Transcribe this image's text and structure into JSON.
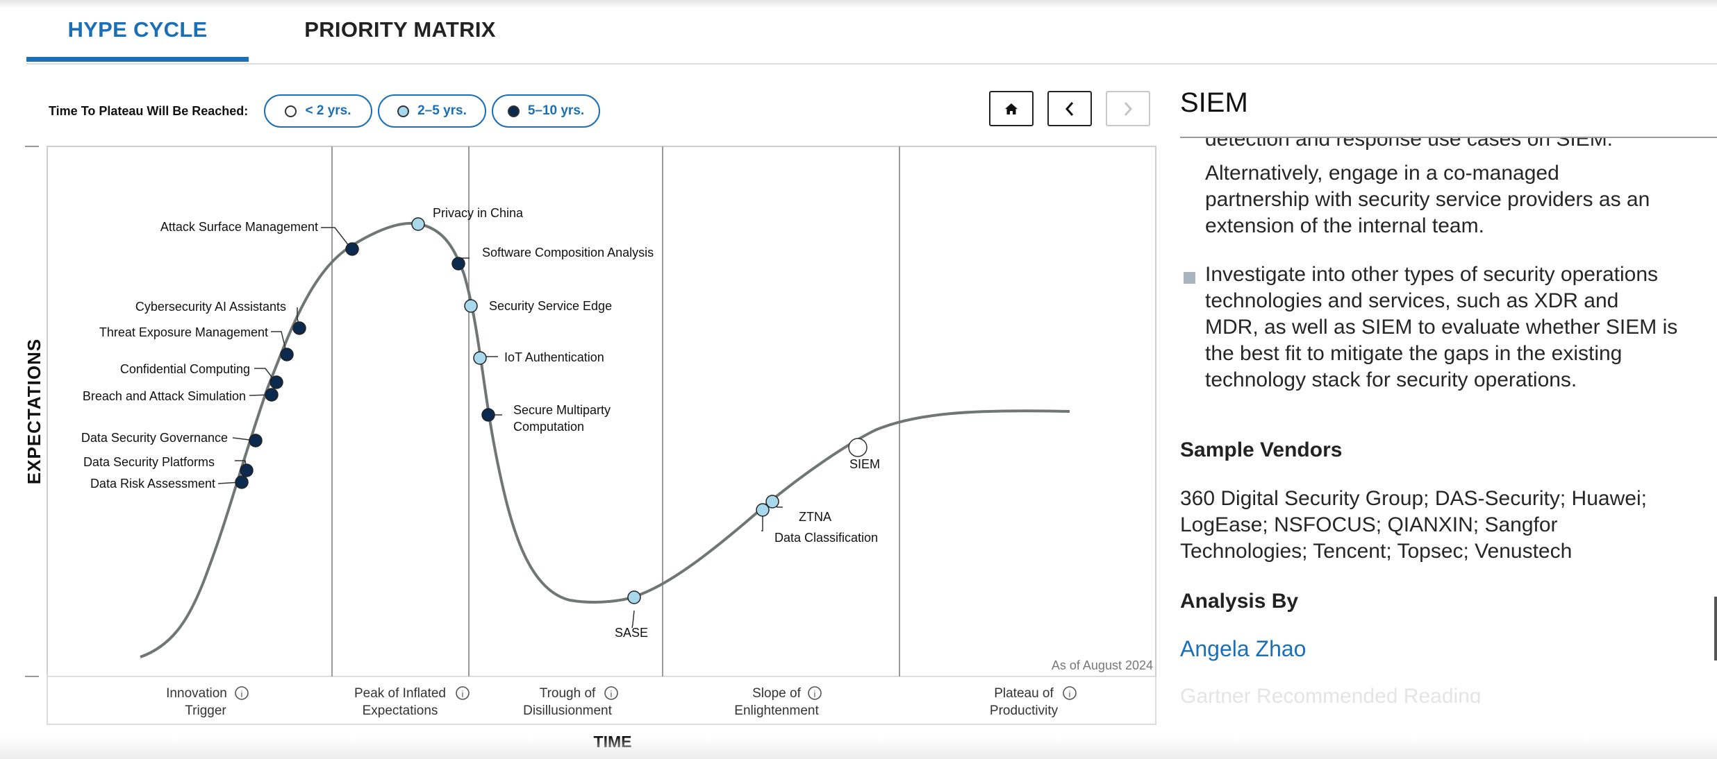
{
  "tabs": [
    {
      "label": "HYPE CYCLE",
      "active": true
    },
    {
      "label": "PRIORITY MATRIX",
      "active": false
    }
  ],
  "legend": {
    "title": "Time To Plateau Will Be Reached:",
    "items": [
      {
        "label": "< 2 yrs.",
        "color": "#ffffff"
      },
      {
        "label": "2–5 yrs.",
        "color": "#a8d8ec"
      },
      {
        "label": "5–10 yrs.",
        "color": "#0b2a4e"
      }
    ]
  },
  "nav": {
    "home_icon": "home-icon",
    "prev_icon": "chevron-left-icon",
    "next_icon": "chevron-right-icon"
  },
  "chart_data": {
    "type": "scatter",
    "ylabel": "EXPECTATIONS",
    "xlabel": "TIME",
    "as_of": "As of August 2024",
    "phases": [
      {
        "line1": "Innovation",
        "line2": "Trigger"
      },
      {
        "line1": "Peak of Inflated",
        "line2": "Expectations"
      },
      {
        "line1": "Trough of",
        "line2": "Disillusionment"
      },
      {
        "line1": "Slope of",
        "line2": "Enlightenment"
      },
      {
        "line1": "Plateau of",
        "line2": "Productivity"
      }
    ],
    "technologies": [
      {
        "name": "Attack Surface Management",
        "phase": "Peak of Inflated Expectations",
        "plateau": "5–10 yrs."
      },
      {
        "name": "Privacy in China",
        "phase": "Peak of Inflated Expectations",
        "plateau": "2–5 yrs."
      },
      {
        "name": "Software Composition Analysis",
        "phase": "Peak of Inflated Expectations",
        "plateau": "5–10 yrs."
      },
      {
        "name": "Security Service Edge",
        "phase": "Peak of Inflated Expectations",
        "plateau": "2–5 yrs."
      },
      {
        "name": "IoT Authentication",
        "phase": "Trough of Disillusionment",
        "plateau": "2–5 yrs."
      },
      {
        "name": "Secure Multiparty Computation",
        "phase": "Trough of Disillusionment",
        "plateau": "5–10 yrs."
      },
      {
        "name": "Cybersecurity AI Assistants",
        "phase": "Innovation Trigger",
        "plateau": "5–10 yrs."
      },
      {
        "name": "Threat Exposure Management",
        "phase": "Innovation Trigger",
        "plateau": "5–10 yrs."
      },
      {
        "name": "Confidential Computing",
        "phase": "Innovation Trigger",
        "plateau": "5–10 yrs."
      },
      {
        "name": "Breach and Attack Simulation",
        "phase": "Innovation Trigger",
        "plateau": "5–10 yrs."
      },
      {
        "name": "Data Security Governance",
        "phase": "Innovation Trigger",
        "plateau": "5–10 yrs."
      },
      {
        "name": "Data Security Platforms",
        "phase": "Innovation Trigger",
        "plateau": "5–10 yrs."
      },
      {
        "name": "Data Risk Assessment",
        "phase": "Innovation Trigger",
        "plateau": "5–10 yrs."
      },
      {
        "name": "SASE",
        "phase": "Trough of Disillusionment",
        "plateau": "2–5 yrs."
      },
      {
        "name": "ZTNA",
        "phase": "Slope of Enlightenment",
        "plateau": "2–5 yrs."
      },
      {
        "name": "Data Classification",
        "phase": "Slope of Enlightenment",
        "plateau": "2–5 yrs."
      },
      {
        "name": "SIEM",
        "phase": "Slope of Enlightenment",
        "plateau": "< 2 yrs."
      }
    ]
  },
  "panel": {
    "title": "SIEM",
    "cutoff_line": "detection and response use cases on SIEM.",
    "para1": [
      "Alternatively, engage in a co-managed",
      "partnership with security service providers as an",
      "extension of the internal team."
    ],
    "para2": [
      "Investigate into other types of security operations",
      "technologies and services, such as XDR and",
      "MDR, as well as SIEM to evaluate whether SIEM is",
      "the best fit to mitigate the gaps in the existing",
      "technology stack for security operations."
    ],
    "vendors_heading": "Sample Vendors",
    "vendors": [
      "360 Digital Security Group; DAS-Security; Huawei;",
      "LogEase; NSFOCUS; QIANXIN; Sangfor",
      "Technologies; Tencent; Topsec; Venustech"
    ],
    "analysis_heading": "Analysis By",
    "analyst": "Angela Zhao",
    "faded_next": "Gartner Recommended Reading"
  }
}
